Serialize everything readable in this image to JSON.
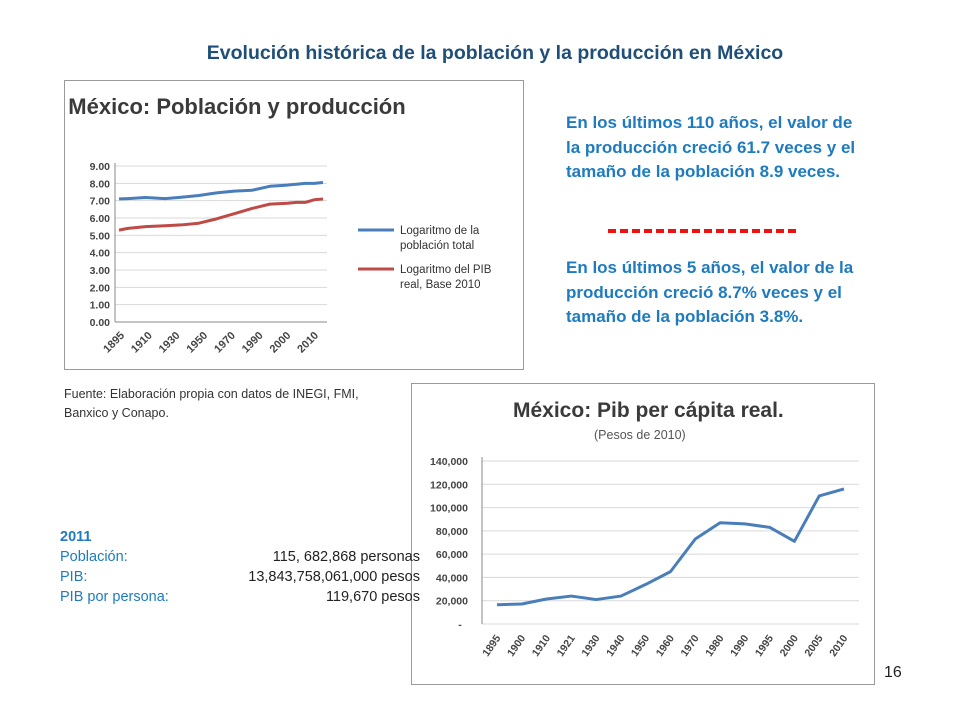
{
  "slide": {
    "title": "Evolución histórica de la población y la producción en México",
    "page_number": "16"
  },
  "notes": {
    "long_term": "En los últimos 110 años, el valor de la producción creció 61.7 veces y el tamaño de la población 8.9 veces.",
    "short_term": "En los últimos 5 años, el valor de la producción creció 8.7% veces y el tamaño de la población 3.8%."
  },
  "source": "Fuente: Elaboración propia con datos de INEGI, FMI, Banxico y Conapo.",
  "stats": {
    "year": "2011",
    "rows": [
      {
        "label": "Población:",
        "value": "115, 682,868 personas"
      },
      {
        "label": "PIB:",
        "value": "13,843,758,061,000 pesos"
      },
      {
        "label": "PIB por persona:",
        "value": "119,670 pesos"
      }
    ]
  },
  "colors": {
    "title": "#1f4e79",
    "note_text": "#1e7bbf",
    "divider": "#ee1111",
    "series_blue": "#4a7ebb",
    "series_red": "#be4b48"
  },
  "chart_data": [
    {
      "type": "line",
      "title": "México: Población y producción",
      "ylim": [
        0,
        9
      ],
      "yticks": [
        "0.00",
        "1.00",
        "2.00",
        "3.00",
        "4.00",
        "5.00",
        "6.00",
        "7.00",
        "8.00",
        "9.00"
      ],
      "x_tick_labels": [
        "1895",
        "1910",
        "1930",
        "1950",
        "1970",
        "1990",
        "2000",
        "2010"
      ],
      "x": [
        1895,
        1900,
        1910,
        1921,
        1930,
        1940,
        1950,
        1960,
        1970,
        1980,
        1990,
        1995,
        2000,
        2005,
        2010
      ],
      "series": [
        {
          "name": "Logaritmo de la población total",
          "color": "#4a7ebb",
          "values": [
            7.1,
            7.12,
            7.18,
            7.12,
            7.2,
            7.3,
            7.45,
            7.55,
            7.6,
            7.83,
            7.9,
            7.95,
            8.0,
            8.0,
            8.05
          ]
        },
        {
          "name": "Logaritmo del PIB real, Base 2010",
          "color": "#be4b48",
          "values": [
            5.3,
            5.4,
            5.5,
            5.55,
            5.6,
            5.7,
            5.95,
            6.25,
            6.55,
            6.8,
            6.85,
            6.9,
            6.9,
            7.05,
            7.1
          ]
        }
      ],
      "legend": "right",
      "grid": true
    },
    {
      "type": "line",
      "title": "México: Pib per cápita real.",
      "subtitle": "(Pesos de 2010)",
      "ylim": [
        0,
        140000
      ],
      "yticks": [
        "-",
        "20,000",
        "40,000",
        "60,000",
        "80,000",
        "100,000",
        "120,000",
        "140,000"
      ],
      "x_tick_labels": [
        "1895",
        "1900",
        "1910",
        "1921",
        "1930",
        "1940",
        "1950",
        "1960",
        "1970",
        "1980",
        "1990",
        "1995",
        "2000",
        "2005",
        "2010"
      ],
      "series": [
        {
          "color": "#4a7ebb",
          "values": [
            16500,
            17200,
            21500,
            24000,
            21000,
            24000,
            34000,
            45000,
            73000,
            87000,
            86000,
            83000,
            71000,
            110000,
            116000
          ]
        }
      ],
      "grid": true
    }
  ]
}
